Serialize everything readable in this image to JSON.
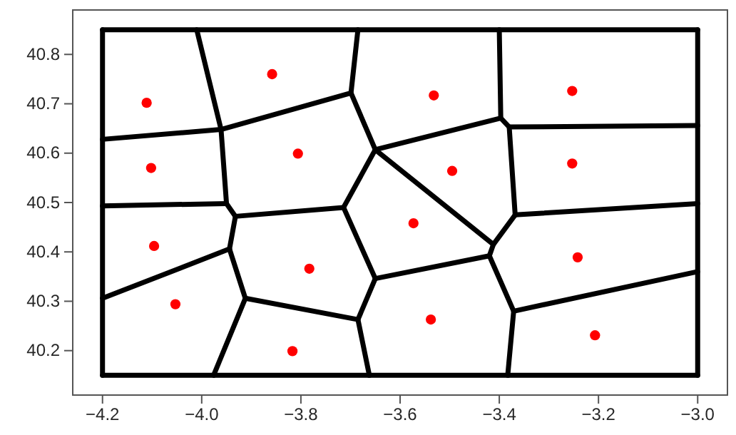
{
  "chart_data": {
    "type": "scatter",
    "xlim": [
      -4.26,
      -2.94
    ],
    "ylim": [
      40.11,
      40.89
    ],
    "xticks": [
      {
        "value": -4.2,
        "label": "−4.2"
      },
      {
        "value": -4.0,
        "label": "−4.0"
      },
      {
        "value": -3.8,
        "label": "−3.8"
      },
      {
        "value": -3.6,
        "label": "−3.6"
      },
      {
        "value": -3.4,
        "label": "−3.4"
      },
      {
        "value": -3.2,
        "label": "−3.2"
      },
      {
        "value": -3.0,
        "label": "−3.0"
      }
    ],
    "yticks": [
      40.2,
      40.3,
      40.4,
      40.5,
      40.6,
      40.7,
      40.8
    ],
    "series": [
      {
        "type": "line",
        "color": "#000000",
        "marker": "none",
        "x": [
          -4.2,
          -3.0
        ],
        "values": [
          40.85,
          40.85
        ]
      },
      {
        "type": "line",
        "color": "#000000",
        "marker": "none",
        "x": [
          -4.2,
          -3.0
        ],
        "values": [
          40.15,
          40.15
        ]
      },
      {
        "type": "line",
        "color": "#000000",
        "marker": "none",
        "x": [
          -4.2,
          -4.2
        ],
        "values": [
          40.15,
          40.85
        ]
      },
      {
        "type": "line",
        "color": "#000000",
        "marker": "none",
        "x": [
          -3.0,
          -3.0
        ],
        "values": [
          40.15,
          40.85
        ]
      },
      {
        "type": "line",
        "color": "#000000",
        "marker": "none",
        "x": [
          -4.01,
          -3.961,
          -3.95,
          -3.932
        ],
        "values": [
          40.85,
          40.648,
          40.498,
          40.472
        ]
      },
      {
        "type": "line",
        "color": "#000000",
        "marker": "none",
        "x": [
          -3.944,
          -3.932
        ],
        "values": [
          40.406,
          40.472
        ]
      },
      {
        "type": "line",
        "color": "#000000",
        "marker": "none",
        "x": [
          -3.944,
          -3.912
        ],
        "values": [
          40.406,
          40.306
        ]
      },
      {
        "type": "line",
        "color": "#000000",
        "marker": "none",
        "x": [
          -3.976,
          -3.912
        ],
        "values": [
          40.15,
          40.306
        ]
      },
      {
        "type": "line",
        "color": "#000000",
        "marker": "none",
        "x": [
          -4.2,
          -3.961,
          -3.699,
          -3.65,
          -3.397,
          -3.38,
          -3.0
        ],
        "values": [
          40.628,
          40.648,
          40.722,
          40.607,
          40.671,
          40.653,
          40.656
        ]
      },
      {
        "type": "line",
        "color": "#000000",
        "marker": "none",
        "x": [
          -3.699,
          -3.685
        ],
        "values": [
          40.722,
          40.85
        ]
      },
      {
        "type": "line",
        "color": "#000000",
        "marker": "none",
        "x": [
          -3.4,
          -3.397
        ],
        "values": [
          40.85,
          40.671
        ]
      },
      {
        "type": "line",
        "color": "#000000",
        "marker": "none",
        "x": [
          -3.38,
          -3.368
        ],
        "values": [
          40.653,
          40.475
        ]
      },
      {
        "type": "line",
        "color": "#000000",
        "marker": "none",
        "x": [
          -3.42,
          -3.412,
          -3.368
        ],
        "values": [
          40.392,
          40.415,
          40.475
        ]
      },
      {
        "type": "line",
        "color": "#000000",
        "marker": "none",
        "x": [
          -3.65,
          -3.412
        ],
        "values": [
          40.607,
          40.415
        ]
      },
      {
        "type": "line",
        "color": "#000000",
        "marker": "none",
        "x": [
          -3.714,
          -3.65
        ],
        "values": [
          40.49,
          40.607
        ]
      },
      {
        "type": "line",
        "color": "#000000",
        "marker": "none",
        "x": [
          -3.932,
          -3.714
        ],
        "values": [
          40.472,
          40.49
        ]
      },
      {
        "type": "line",
        "color": "#000000",
        "marker": "none",
        "x": [
          -4.2,
          -3.95
        ],
        "values": [
          40.493,
          40.498
        ]
      },
      {
        "type": "line",
        "color": "#000000",
        "marker": "none",
        "x": [
          -4.2,
          -3.944
        ],
        "values": [
          40.306,
          40.406
        ]
      },
      {
        "type": "line",
        "color": "#000000",
        "marker": "none",
        "x": [
          -3.368,
          -3.0
        ],
        "values": [
          40.475,
          40.498
        ]
      },
      {
        "type": "line",
        "color": "#000000",
        "marker": "none",
        "x": [
          -3.714,
          -3.65
        ],
        "values": [
          40.49,
          40.346
        ]
      },
      {
        "type": "line",
        "color": "#000000",
        "marker": "none",
        "x": [
          -3.685,
          -3.65
        ],
        "values": [
          40.263,
          40.346
        ]
      },
      {
        "type": "line",
        "color": "#000000",
        "marker": "none",
        "x": [
          -3.912,
          -3.685
        ],
        "values": [
          40.306,
          40.263
        ]
      },
      {
        "type": "line",
        "color": "#000000",
        "marker": "none",
        "x": [
          -3.685,
          -3.662
        ],
        "values": [
          40.263,
          40.15
        ]
      },
      {
        "type": "line",
        "color": "#000000",
        "marker": "none",
        "x": [
          -3.65,
          -3.42
        ],
        "values": [
          40.346,
          40.392
        ]
      },
      {
        "type": "line",
        "color": "#000000",
        "marker": "none",
        "x": [
          -3.42,
          -3.371
        ],
        "values": [
          40.392,
          40.28
        ]
      },
      {
        "type": "line",
        "color": "#000000",
        "marker": "none",
        "x": [
          -3.383,
          -3.371
        ],
        "values": [
          40.15,
          40.28
        ]
      },
      {
        "type": "line",
        "color": "#000000",
        "marker": "none",
        "x": [
          -3.371,
          -3.0
        ],
        "values": [
          40.28,
          40.36
        ]
      },
      {
        "color": "#ff0000",
        "marker": "circle",
        "x": [
          -4.111,
          -3.858,
          -3.532,
          -3.253,
          -4.102,
          -3.806,
          -3.495,
          -3.253,
          -4.096,
          -3.783,
          -3.573,
          -4.053,
          -3.817,
          -3.538,
          -3.242,
          -3.207
        ],
        "values": [
          40.702,
          40.76,
          40.717,
          40.726,
          40.57,
          40.599,
          40.564,
          40.579,
          40.412,
          40.366,
          40.458,
          40.294,
          40.199,
          40.263,
          40.389,
          40.231
        ]
      }
    ]
  }
}
